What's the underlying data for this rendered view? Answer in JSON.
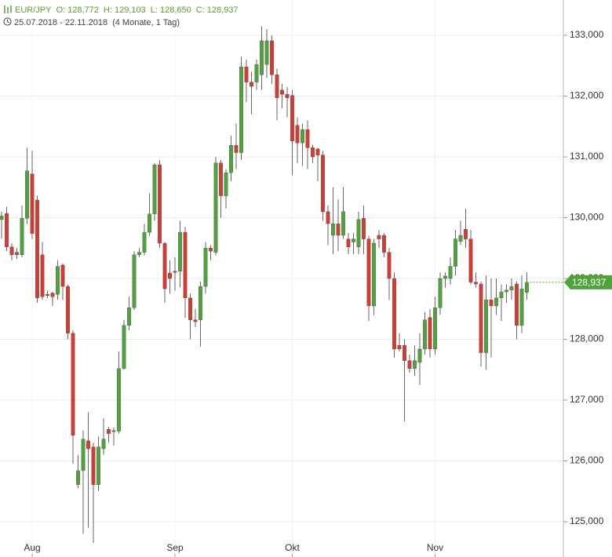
{
  "chart_data": {
    "type": "candlestick",
    "title": "EUR/JPY",
    "ohlc_labels": [
      "O: 128,772",
      "H: 129,103",
      "L: 128,650",
      "C: 128,937"
    ],
    "subtitle": "25.07.2018 - 22.11.2018",
    "period": "(4 Monate, 1 Tag)",
    "categories": [
      null,
      null,
      null,
      null,
      null,
      null,
      "Aug",
      null,
      null,
      null,
      null,
      null,
      null,
      null,
      null,
      null,
      null,
      null,
      null,
      null,
      null,
      null,
      null,
      null,
      null,
      null,
      null,
      null,
      null,
      null,
      null,
      null,
      null,
      null,
      "Sep",
      null,
      null,
      null,
      null,
      null,
      null,
      null,
      null,
      null,
      null,
      null,
      null,
      null,
      null,
      null,
      null,
      null,
      null,
      null,
      null,
      null,
      null,
      "Okt",
      null,
      null,
      null,
      null,
      null,
      null,
      null,
      null,
      null,
      null,
      null,
      null,
      null,
      null,
      null,
      null,
      null,
      null,
      null,
      null,
      null,
      null,
      null,
      null,
      null,
      null,
      null,
      "Nov",
      null,
      null,
      null,
      null,
      null,
      null,
      null,
      null,
      null,
      null,
      null,
      null,
      null,
      null,
      null,
      null,
      null,
      null
    ],
    "open": [
      129970,
      130070,
      129520,
      129430,
      129390,
      129990,
      130720,
      130290,
      129390,
      128740,
      128760,
      128740,
      129220,
      128870,
      128100,
      125610,
      125840,
      126330,
      126230,
      125610,
      126200,
      126520,
      126480,
      126490,
      127520,
      128230,
      128520,
      129390,
      129430,
      129760,
      130060,
      130870,
      129580,
      129090,
      129120,
      129120,
      129760,
      128680,
      128320,
      128320,
      128870,
      129500,
      129430,
      130900,
      130360,
      130740,
      131190,
      131070,
      132480,
      132230,
      132230,
      132350,
      132520,
      132910,
      132350,
      132100,
      132030,
      132010,
      131520,
      131230,
      131450,
      131150,
      131130,
      131030,
      130100,
      129710,
      129900,
      129710,
      129650,
      129600,
      129520,
      129990,
      129650,
      128550,
      129710,
      129710,
      129430,
      129000,
      127900,
      127900,
      127650,
      127520,
      127620,
      127840,
      128360,
      127840,
      128520,
      129000,
      129000,
      129200,
      129610,
      129810,
      129650,
      128940,
      128910,
      127780,
      128650,
      128550,
      128680,
      128780,
      128810,
      128910,
      128230,
      128772
    ],
    "high": [
      130100,
      130180,
      129580,
      129500,
      130200,
      131150,
      131100,
      130360,
      129600,
      128800,
      128780,
      129300,
      129250,
      128900,
      128150,
      126100,
      126500,
      126800,
      126300,
      126400,
      126700,
      126560,
      126550,
      127800,
      128320,
      128700,
      129450,
      129500,
      129900,
      130400,
      130900,
      130950,
      129600,
      129300,
      129350,
      129950,
      129850,
      128750,
      128500,
      128950,
      129600,
      129550,
      131000,
      130950,
      130800,
      131350,
      131550,
      132650,
      132600,
      132400,
      132600,
      133150,
      133100,
      133000,
      132450,
      132200,
      132150,
      132100,
      131650,
      131550,
      131600,
      131200,
      131150,
      131100,
      130200,
      130500,
      130300,
      130500,
      129750,
      129750,
      130100,
      130200,
      129700,
      129650,
      129800,
      129750,
      129500,
      129100,
      128100,
      128000,
      127750,
      127900,
      128100,
      128450,
      128500,
      128700,
      129100,
      129100,
      129350,
      129800,
      129950,
      130150,
      129800,
      129100,
      128950,
      129050,
      129000,
      129000,
      128900,
      128900,
      129000,
      128950,
      129050,
      129103
    ],
    "low": [
      129650,
      129450,
      129300,
      129320,
      129350,
      129900,
      129650,
      128600,
      128650,
      128680,
      128550,
      128650,
      128650,
      128000,
      125950,
      125550,
      124800,
      124900,
      124650,
      125500,
      126100,
      126300,
      126250,
      126450,
      127500,
      128150,
      128480,
      129350,
      129380,
      129700,
      129950,
      129500,
      128600,
      128750,
      128800,
      128850,
      128350,
      128000,
      128200,
      127880,
      128750,
      129300,
      129380,
      130000,
      130150,
      130600,
      130800,
      130950,
      131900,
      131700,
      132100,
      132100,
      132300,
      132200,
      131600,
      131800,
      131650,
      130700,
      130900,
      130850,
      130800,
      130900,
      130600,
      129950,
      129550,
      129400,
      129450,
      129650,
      129400,
      129400,
      129400,
      129400,
      128300,
      128400,
      129500,
      129350,
      128650,
      127700,
      127800,
      126650,
      127450,
      127400,
      127250,
      127750,
      127700,
      127750,
      128400,
      128850,
      128900,
      129050,
      129550,
      129500,
      128900,
      128850,
      127550,
      127500,
      127700,
      128400,
      128300,
      128600,
      128650,
      128000,
      128100,
      128650
    ],
    "close": [
      130030,
      129520,
      129390,
      129390,
      129990,
      130770,
      129740,
      128680,
      128700,
      128720,
      128700,
      129200,
      128870,
      128100,
      126420,
      125840,
      126360,
      126200,
      125610,
      126230,
      126360,
      126450,
      126500,
      127520,
      128230,
      128520,
      129390,
      129430,
      129760,
      130060,
      130870,
      129580,
      128830,
      129000,
      129100,
      129760,
      128680,
      128320,
      128290,
      128870,
      129500,
      129450,
      130900,
      130360,
      130740,
      131190,
      131070,
      132480,
      132230,
      132160,
      132520,
      132910,
      132910,
      132350,
      131970,
      132030,
      131970,
      131260,
      131230,
      131450,
      131150,
      131000,
      131030,
      130100,
      129900,
      129900,
      129710,
      130100,
      129520,
      129650,
      129970,
      129650,
      128550,
      129580,
      129650,
      129430,
      129000,
      127840,
      127840,
      127650,
      127520,
      127650,
      127840,
      128320,
      127840,
      128520,
      129000,
      129040,
      129200,
      129650,
      129710,
      129650,
      128940,
      128910,
      127780,
      128650,
      128550,
      128680,
      128780,
      128810,
      128870,
      128230,
      128830,
      128937
    ],
    "up_color": "#4ea43a",
    "down_color": "#d63a30",
    "ylim": [
      124420,
      133580
    ],
    "yticks": [
      {
        "value": 125000,
        "label": "125,000"
      },
      {
        "value": 126000,
        "label": "126,000"
      },
      {
        "value": 127000,
        "label": "127,000"
      },
      {
        "value": 128000,
        "label": "128,000"
      },
      {
        "value": 129000,
        "label": "129,000"
      },
      {
        "value": 130000,
        "label": "130,000"
      },
      {
        "value": 131000,
        "label": "131,000"
      },
      {
        "value": 132000,
        "label": "132,000"
      },
      {
        "value": 133000,
        "label": "133,000"
      }
    ],
    "last_price": {
      "value": 128937,
      "label": "128,937"
    },
    "grid": true
  }
}
